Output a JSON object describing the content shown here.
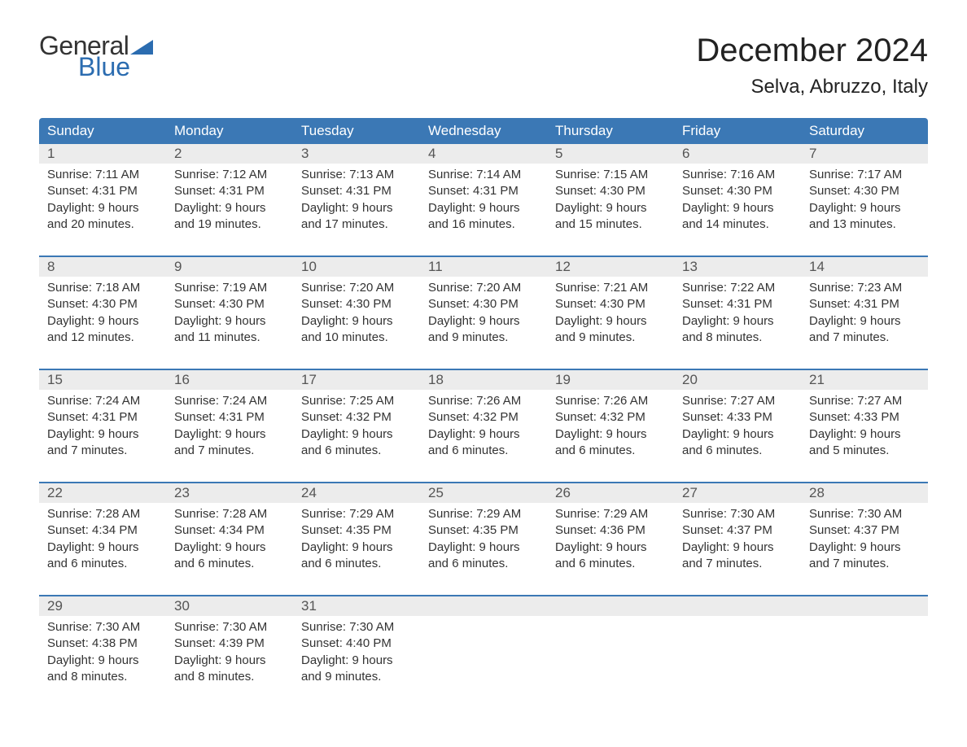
{
  "logo": {
    "text_top": "General",
    "text_bottom": "Blue",
    "shape_color": "#2b6cb0",
    "top_color": "#333333",
    "bottom_color": "#2b6cb0"
  },
  "title": "December 2024",
  "location": "Selva, Abruzzo, Italy",
  "colors": {
    "header_bg": "#3b78b5",
    "header_text": "#ffffff",
    "daynum_bg": "#ececec",
    "daynum_text": "#555555",
    "body_text": "#333333",
    "week_border": "#3b78b5",
    "page_bg": "#ffffff"
  },
  "typography": {
    "title_fontsize": 40,
    "location_fontsize": 24,
    "header_fontsize": 17,
    "daynum_fontsize": 17,
    "cell_fontsize": 15
  },
  "day_headers": [
    "Sunday",
    "Monday",
    "Tuesday",
    "Wednesday",
    "Thursday",
    "Friday",
    "Saturday"
  ],
  "weeks": [
    [
      {
        "num": "1",
        "sunrise": "Sunrise: 7:11 AM",
        "sunset": "Sunset: 4:31 PM",
        "daylight1": "Daylight: 9 hours",
        "daylight2": "and 20 minutes."
      },
      {
        "num": "2",
        "sunrise": "Sunrise: 7:12 AM",
        "sunset": "Sunset: 4:31 PM",
        "daylight1": "Daylight: 9 hours",
        "daylight2": "and 19 minutes."
      },
      {
        "num": "3",
        "sunrise": "Sunrise: 7:13 AM",
        "sunset": "Sunset: 4:31 PM",
        "daylight1": "Daylight: 9 hours",
        "daylight2": "and 17 minutes."
      },
      {
        "num": "4",
        "sunrise": "Sunrise: 7:14 AM",
        "sunset": "Sunset: 4:31 PM",
        "daylight1": "Daylight: 9 hours",
        "daylight2": "and 16 minutes."
      },
      {
        "num": "5",
        "sunrise": "Sunrise: 7:15 AM",
        "sunset": "Sunset: 4:30 PM",
        "daylight1": "Daylight: 9 hours",
        "daylight2": "and 15 minutes."
      },
      {
        "num": "6",
        "sunrise": "Sunrise: 7:16 AM",
        "sunset": "Sunset: 4:30 PM",
        "daylight1": "Daylight: 9 hours",
        "daylight2": "and 14 minutes."
      },
      {
        "num": "7",
        "sunrise": "Sunrise: 7:17 AM",
        "sunset": "Sunset: 4:30 PM",
        "daylight1": "Daylight: 9 hours",
        "daylight2": "and 13 minutes."
      }
    ],
    [
      {
        "num": "8",
        "sunrise": "Sunrise: 7:18 AM",
        "sunset": "Sunset: 4:30 PM",
        "daylight1": "Daylight: 9 hours",
        "daylight2": "and 12 minutes."
      },
      {
        "num": "9",
        "sunrise": "Sunrise: 7:19 AM",
        "sunset": "Sunset: 4:30 PM",
        "daylight1": "Daylight: 9 hours",
        "daylight2": "and 11 minutes."
      },
      {
        "num": "10",
        "sunrise": "Sunrise: 7:20 AM",
        "sunset": "Sunset: 4:30 PM",
        "daylight1": "Daylight: 9 hours",
        "daylight2": "and 10 minutes."
      },
      {
        "num": "11",
        "sunrise": "Sunrise: 7:20 AM",
        "sunset": "Sunset: 4:30 PM",
        "daylight1": "Daylight: 9 hours",
        "daylight2": "and 9 minutes."
      },
      {
        "num": "12",
        "sunrise": "Sunrise: 7:21 AM",
        "sunset": "Sunset: 4:30 PM",
        "daylight1": "Daylight: 9 hours",
        "daylight2": "and 9 minutes."
      },
      {
        "num": "13",
        "sunrise": "Sunrise: 7:22 AM",
        "sunset": "Sunset: 4:31 PM",
        "daylight1": "Daylight: 9 hours",
        "daylight2": "and 8 minutes."
      },
      {
        "num": "14",
        "sunrise": "Sunrise: 7:23 AM",
        "sunset": "Sunset: 4:31 PM",
        "daylight1": "Daylight: 9 hours",
        "daylight2": "and 7 minutes."
      }
    ],
    [
      {
        "num": "15",
        "sunrise": "Sunrise: 7:24 AM",
        "sunset": "Sunset: 4:31 PM",
        "daylight1": "Daylight: 9 hours",
        "daylight2": "and 7 minutes."
      },
      {
        "num": "16",
        "sunrise": "Sunrise: 7:24 AM",
        "sunset": "Sunset: 4:31 PM",
        "daylight1": "Daylight: 9 hours",
        "daylight2": "and 7 minutes."
      },
      {
        "num": "17",
        "sunrise": "Sunrise: 7:25 AM",
        "sunset": "Sunset: 4:32 PM",
        "daylight1": "Daylight: 9 hours",
        "daylight2": "and 6 minutes."
      },
      {
        "num": "18",
        "sunrise": "Sunrise: 7:26 AM",
        "sunset": "Sunset: 4:32 PM",
        "daylight1": "Daylight: 9 hours",
        "daylight2": "and 6 minutes."
      },
      {
        "num": "19",
        "sunrise": "Sunrise: 7:26 AM",
        "sunset": "Sunset: 4:32 PM",
        "daylight1": "Daylight: 9 hours",
        "daylight2": "and 6 minutes."
      },
      {
        "num": "20",
        "sunrise": "Sunrise: 7:27 AM",
        "sunset": "Sunset: 4:33 PM",
        "daylight1": "Daylight: 9 hours",
        "daylight2": "and 6 minutes."
      },
      {
        "num": "21",
        "sunrise": "Sunrise: 7:27 AM",
        "sunset": "Sunset: 4:33 PM",
        "daylight1": "Daylight: 9 hours",
        "daylight2": "and 5 minutes."
      }
    ],
    [
      {
        "num": "22",
        "sunrise": "Sunrise: 7:28 AM",
        "sunset": "Sunset: 4:34 PM",
        "daylight1": "Daylight: 9 hours",
        "daylight2": "and 6 minutes."
      },
      {
        "num": "23",
        "sunrise": "Sunrise: 7:28 AM",
        "sunset": "Sunset: 4:34 PM",
        "daylight1": "Daylight: 9 hours",
        "daylight2": "and 6 minutes."
      },
      {
        "num": "24",
        "sunrise": "Sunrise: 7:29 AM",
        "sunset": "Sunset: 4:35 PM",
        "daylight1": "Daylight: 9 hours",
        "daylight2": "and 6 minutes."
      },
      {
        "num": "25",
        "sunrise": "Sunrise: 7:29 AM",
        "sunset": "Sunset: 4:35 PM",
        "daylight1": "Daylight: 9 hours",
        "daylight2": "and 6 minutes."
      },
      {
        "num": "26",
        "sunrise": "Sunrise: 7:29 AM",
        "sunset": "Sunset: 4:36 PM",
        "daylight1": "Daylight: 9 hours",
        "daylight2": "and 6 minutes."
      },
      {
        "num": "27",
        "sunrise": "Sunrise: 7:30 AM",
        "sunset": "Sunset: 4:37 PM",
        "daylight1": "Daylight: 9 hours",
        "daylight2": "and 7 minutes."
      },
      {
        "num": "28",
        "sunrise": "Sunrise: 7:30 AM",
        "sunset": "Sunset: 4:37 PM",
        "daylight1": "Daylight: 9 hours",
        "daylight2": "and 7 minutes."
      }
    ],
    [
      {
        "num": "29",
        "sunrise": "Sunrise: 7:30 AM",
        "sunset": "Sunset: 4:38 PM",
        "daylight1": "Daylight: 9 hours",
        "daylight2": "and 8 minutes."
      },
      {
        "num": "30",
        "sunrise": "Sunrise: 7:30 AM",
        "sunset": "Sunset: 4:39 PM",
        "daylight1": "Daylight: 9 hours",
        "daylight2": "and 8 minutes."
      },
      {
        "num": "31",
        "sunrise": "Sunrise: 7:30 AM",
        "sunset": "Sunset: 4:40 PM",
        "daylight1": "Daylight: 9 hours",
        "daylight2": "and 9 minutes."
      },
      null,
      null,
      null,
      null
    ]
  ]
}
